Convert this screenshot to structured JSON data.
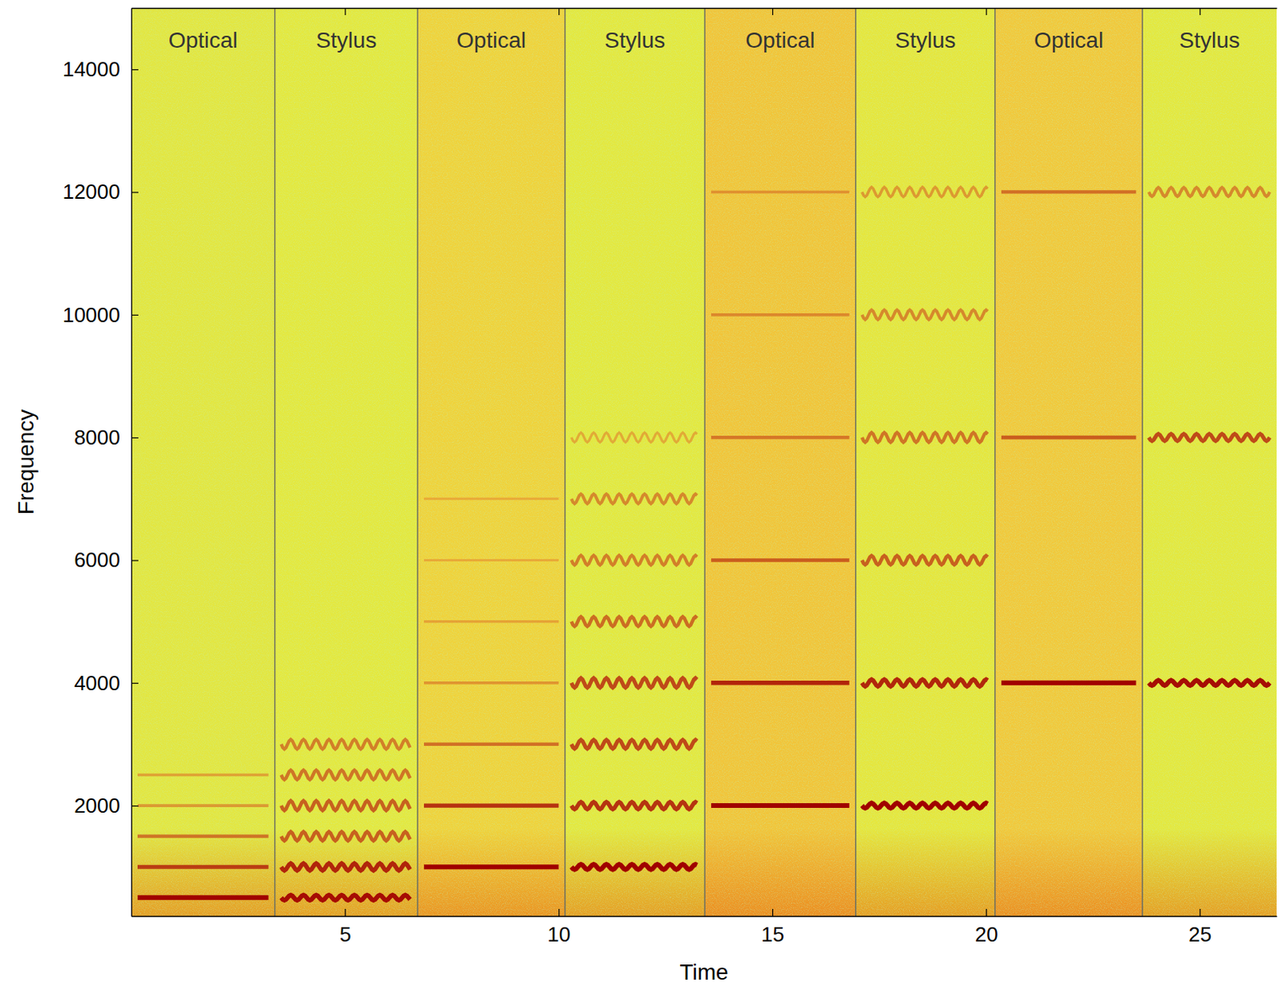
{
  "chart_data": {
    "type": "spectrogram",
    "xlabel": "Time",
    "ylabel": "Frequency",
    "xlim": [
      0,
      26.8
    ],
    "ylim": [
      200,
      15000
    ],
    "xticks": [
      5,
      10,
      15,
      20,
      25
    ],
    "yticks": [
      2000,
      4000,
      6000,
      8000,
      10000,
      12000,
      14000
    ],
    "segments": [
      {
        "label": "Optical",
        "start": 0,
        "end": 3.36,
        "color": "#e3e640",
        "line_style": "straight",
        "frequencies": [
          500,
          1000,
          1500,
          2000,
          2500
        ],
        "intensities": [
          1.0,
          0.75,
          0.5,
          0.3,
          0.25
        ]
      },
      {
        "label": "Stylus",
        "start": 3.36,
        "end": 6.7,
        "color": "#e4e83e",
        "line_style": "wavy",
        "frequencies": [
          500,
          1000,
          1500,
          2000,
          2500,
          3000
        ],
        "intensities": [
          0.95,
          0.85,
          0.6,
          0.6,
          0.5,
          0.45
        ]
      },
      {
        "label": "Optical",
        "start": 6.7,
        "end": 10.15,
        "color": "#f0d23a",
        "line_style": "straight",
        "frequencies": [
          1000,
          2000,
          3000,
          4000,
          5000,
          6000,
          7000
        ],
        "intensities": [
          1.0,
          0.8,
          0.5,
          0.3,
          0.2,
          0.15,
          0.15
        ]
      },
      {
        "label": "Stylus",
        "start": 10.15,
        "end": 13.42,
        "color": "#e4e83e",
        "line_style": "wavy",
        "frequencies": [
          1000,
          2000,
          3000,
          4000,
          5000,
          6000,
          7000,
          8000
        ],
        "intensities": [
          1.0,
          0.8,
          0.7,
          0.7,
          0.55,
          0.45,
          0.4,
          0.2
        ]
      },
      {
        "label": "Optical",
        "start": 13.42,
        "end": 16.95,
        "color": "#f2c438",
        "line_style": "straight",
        "frequencies": [
          2000,
          4000,
          6000,
          8000,
          10000,
          12000
        ],
        "intensities": [
          1.0,
          0.85,
          0.6,
          0.45,
          0.35,
          0.3
        ]
      },
      {
        "label": "Stylus",
        "start": 16.95,
        "end": 20.21,
        "color": "#e6e63c",
        "line_style": "wavy",
        "frequencies": [
          2000,
          4000,
          6000,
          8000,
          10000,
          12000
        ],
        "intensities": [
          1.0,
          0.85,
          0.6,
          0.5,
          0.4,
          0.3
        ]
      },
      {
        "label": "Optical",
        "start": 20.21,
        "end": 23.66,
        "color": "#f2c83a",
        "line_style": "straight",
        "frequencies": [
          4000,
          8000,
          12000
        ],
        "intensities": [
          1.0,
          0.6,
          0.5
        ]
      },
      {
        "label": "Stylus",
        "start": 23.66,
        "end": 26.8,
        "color": "#e4e83e",
        "line_style": "wavy",
        "frequencies": [
          4000,
          8000,
          12000
        ],
        "intensities": [
          0.95,
          0.7,
          0.4
        ]
      }
    ]
  }
}
